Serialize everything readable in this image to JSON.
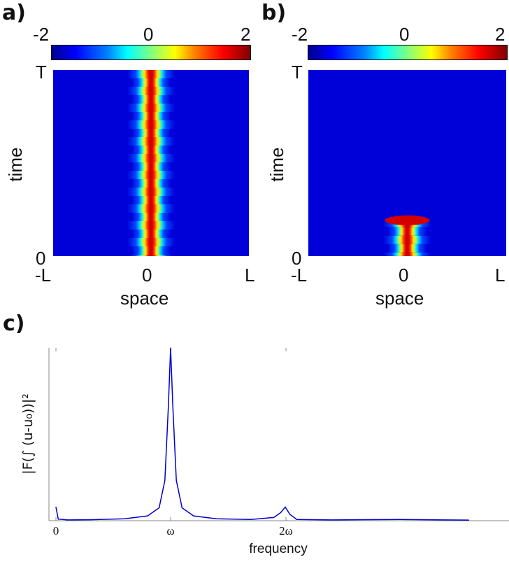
{
  "panels": {
    "a_label": "a)",
    "b_label": "b)",
    "c_label": "c)"
  },
  "chart_data": [
    {
      "type": "heatmap",
      "panel": "a",
      "xlabel": "space",
      "ylabel": "time",
      "x_ticks": [
        "-L",
        "0",
        "L"
      ],
      "y_ticks": [
        "0",
        "T"
      ],
      "colorbar": {
        "ticks": [
          "-2",
          "0",
          "2"
        ],
        "range": [
          -2,
          2
        ],
        "colormap": "jet"
      },
      "feature": {
        "description": "stationary localized pulse centered at x=0, persisting for all times 0 to T, with slight periodic breathing of width",
        "center_x": 0,
        "time_start_fraction": 0,
        "time_end_fraction": 1,
        "peak_value": 2,
        "background_value": -2
      }
    },
    {
      "type": "heatmap",
      "panel": "b",
      "xlabel": "space",
      "ylabel": "time",
      "x_ticks": [
        "-L",
        "0",
        "L"
      ],
      "y_ticks": [
        "0",
        "T"
      ],
      "colorbar": {
        "ticks": [
          "-2",
          "0",
          "2"
        ],
        "range": [
          -2,
          2
        ],
        "colormap": "jet"
      },
      "feature": {
        "description": "localized breathing pulse centered at x=0 that decays and disappears at about 20% of T",
        "center_x": 0,
        "time_start_fraction": 0,
        "time_end_fraction": 0.2,
        "peak_value": 2,
        "background_value": -2
      }
    },
    {
      "type": "line",
      "panel": "c",
      "xlabel": "frequency",
      "ylabel": "|F(∫ (u-u₀))|²",
      "x_tick_labels": [
        "0",
        "ω",
        "2ω"
      ],
      "y_ticks": [],
      "series": [
        {
          "color": "#0000cc",
          "x": [
            0,
            0.02,
            0.1,
            0.3,
            0.6,
            0.8,
            0.9,
            0.95,
            0.98,
            1.0,
            1.02,
            1.05,
            1.1,
            1.2,
            1.4,
            1.7,
            1.9,
            1.96,
            2.0,
            2.04,
            2.1,
            2.4,
            3.0,
            3.4,
            3.6
          ],
          "y": [
            0.085,
            0.01,
            0.005,
            0.006,
            0.012,
            0.03,
            0.08,
            0.25,
            0.7,
            1.3,
            0.7,
            0.25,
            0.08,
            0.03,
            0.012,
            0.008,
            0.02,
            0.05,
            0.085,
            0.04,
            0.008,
            0.005,
            0.008,
            0.005,
            0.004
          ]
        }
      ],
      "ylim": [
        0,
        1
      ],
      "peaks": [
        {
          "x_label": "0",
          "relative_height": 0.085
        },
        {
          "x_label": "ω",
          "relative_height": 1.3,
          "clipped": true
        },
        {
          "x_label": "2ω",
          "relative_height": 0.085
        }
      ]
    }
  ]
}
